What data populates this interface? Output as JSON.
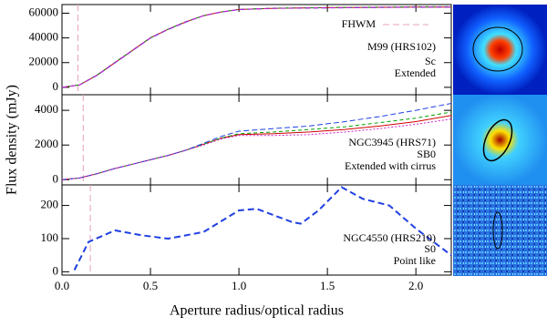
{
  "chart_data": [
    {
      "type": "line",
      "xlim": [
        0,
        2.2
      ],
      "ylim": [
        -6000,
        67000
      ],
      "yticks": [
        0,
        20000,
        40000,
        60000
      ],
      "fwhm": 0.09,
      "fwhm_color": "#e8a0c0",
      "fwhm_label": "FHWM",
      "annotations": [
        "M99 (HRS102)",
        "Sc",
        "Extended"
      ],
      "x": [
        0,
        0.1,
        0.2,
        0.3,
        0.4,
        0.5,
        0.6,
        0.7,
        0.8,
        0.9,
        1.0,
        1.2,
        1.5,
        2.0,
        2.2
      ],
      "series": [
        {
          "color": "#d00000",
          "dash": "none",
          "values": [
            0,
            2000,
            10000,
            20000,
            30000,
            40000,
            47000,
            53000,
            58000,
            61000,
            63000,
            64000,
            64500,
            65000,
            65000
          ]
        },
        {
          "color": "#00a000",
          "dash": "4,3",
          "values": [
            0,
            2100,
            10200,
            20300,
            30200,
            40200,
            47200,
            53200,
            58100,
            61100,
            63100,
            64100,
            64600,
            65200,
            65300
          ]
        },
        {
          "color": "#2040e0",
          "dash": "6,3",
          "values": [
            0,
            1900,
            9800,
            19800,
            29800,
            39800,
            46800,
            52800,
            57900,
            60900,
            62900,
            63900,
            64300,
            64800,
            64900
          ]
        },
        {
          "color": "#d020d0",
          "dash": "6,3",
          "values": [
            0,
            2000,
            10100,
            20100,
            30100,
            40100,
            47100,
            53100,
            58000,
            61000,
            63000,
            64000,
            64400,
            64900,
            65000
          ]
        }
      ]
    },
    {
      "type": "line",
      "xlim": [
        0,
        2.2
      ],
      "ylim": [
        -300,
        4900
      ],
      "yticks": [
        0,
        2000,
        4000
      ],
      "fwhm": 0.12,
      "fwhm_color": "#e8a0c0",
      "ylabel": "Flux density (mJy)",
      "annotations": [
        "NGC3945 (HRS71)",
        "SB0",
        "Extended with cirrus"
      ],
      "x": [
        0,
        0.1,
        0.2,
        0.3,
        0.4,
        0.5,
        0.6,
        0.7,
        0.8,
        0.9,
        1.0,
        1.2,
        1.4,
        1.6,
        1.8,
        2.0,
        2.2
      ],
      "series": [
        {
          "color": "#d00000",
          "dash": "none",
          "values": [
            0,
            100,
            350,
            650,
            900,
            1150,
            1400,
            1700,
            2050,
            2400,
            2600,
            2650,
            2750,
            2900,
            3100,
            3350,
            3700
          ]
        },
        {
          "color": "#00a000",
          "dash": "4,3",
          "values": [
            0,
            100,
            350,
            650,
            900,
            1150,
            1400,
            1700,
            2050,
            2400,
            2650,
            2750,
            2900,
            3050,
            3300,
            3550,
            3900
          ]
        },
        {
          "color": "#2040e0",
          "dash": "6,3",
          "values": [
            0,
            100,
            350,
            650,
            900,
            1150,
            1400,
            1700,
            2100,
            2500,
            2800,
            2950,
            3100,
            3350,
            3650,
            4000,
            4400
          ]
        },
        {
          "color": "#d020d0",
          "dash": "2,2",
          "values": [
            0,
            100,
            350,
            650,
            900,
            1150,
            1400,
            1700,
            2000,
            2350,
            2550,
            2550,
            2600,
            2750,
            2950,
            3200,
            3500
          ]
        }
      ]
    },
    {
      "type": "line",
      "xlim": [
        0,
        2.2
      ],
      "ylim": [
        -10,
        262
      ],
      "yticks": [
        0,
        100,
        200
      ],
      "fwhm": 0.16,
      "fwhm_color": "#e8a0c0",
      "xlabel": "Aperture radius/optical radius",
      "xticks": [
        {
          "value": 0,
          "label": "0.0"
        },
        0.5,
        {
          "value": 1,
          "label": "1.0"
        },
        1.5,
        {
          "value": 2,
          "label": "2.0"
        }
      ],
      "annotations": [
        "NGC4550 (HRS210)",
        "S0",
        "Point like"
      ],
      "x": [
        0.07,
        0.15,
        0.3,
        0.45,
        0.6,
        0.8,
        1.0,
        1.1,
        1.3,
        1.35,
        1.45,
        1.58,
        1.7,
        1.85,
        2.0,
        2.1,
        2.2
      ],
      "series": [
        {
          "color": "#2040e0",
          "dash": "7,4",
          "values": [
            5,
            90,
            125,
            110,
            100,
            120,
            185,
            190,
            150,
            145,
            185,
            255,
            220,
            200,
            130,
            90,
            50
          ]
        }
      ]
    }
  ]
}
